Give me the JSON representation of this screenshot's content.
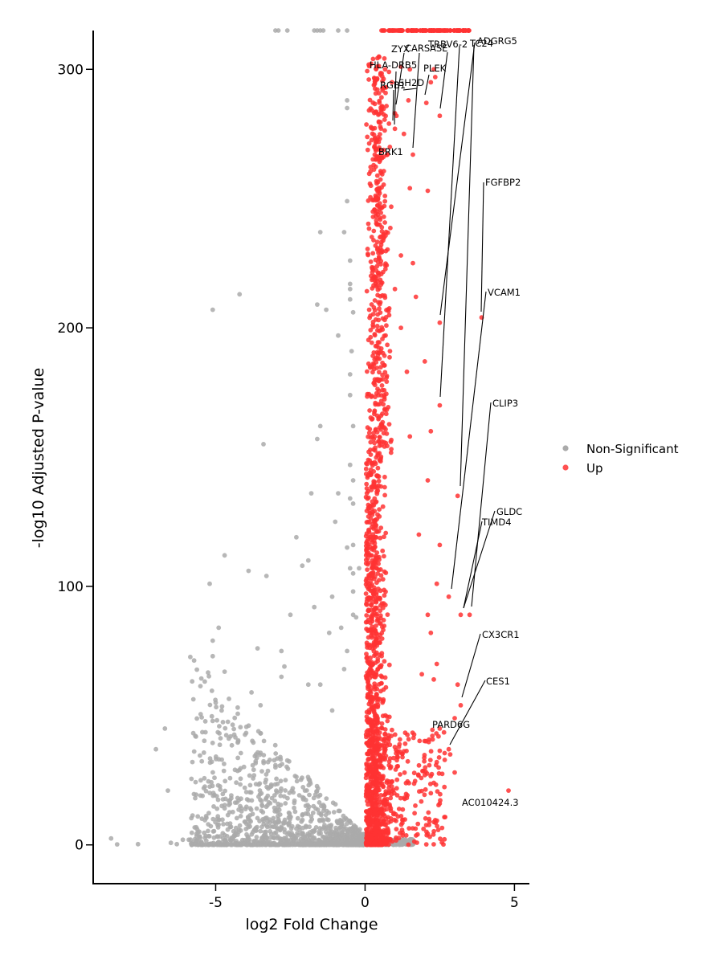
{
  "chart_data": {
    "type": "scatter",
    "xlabel": "log2 Fold Change",
    "ylabel": "-log10 Adjusted P-value",
    "xlim": [
      -9.1,
      5.5
    ],
    "ylim": [
      -15,
      315
    ],
    "x_ticks": [
      {
        "value": -5,
        "label": "-5"
      },
      {
        "value": 0,
        "label": "0"
      },
      {
        "value": 5,
        "label": "5"
      }
    ],
    "y_ticks": [
      {
        "value": 0,
        "label": "0"
      },
      {
        "value": 100,
        "label": "100"
      },
      {
        "value": 200,
        "label": "200"
      },
      {
        "value": 300,
        "label": "300"
      }
    ],
    "grid": false,
    "legend_position": "right",
    "series": [
      {
        "name": "Non-Significant",
        "color": "#aaaaaa",
        "points": [
          [
            -8.5,
            2.5
          ],
          [
            -8.3,
            0.2
          ],
          [
            -7.6,
            0.3
          ],
          [
            -6.7,
            45
          ],
          [
            -7.0,
            37
          ],
          [
            -6.6,
            21
          ],
          [
            -6.5,
            0.8
          ],
          [
            -6.3,
            0.3
          ],
          [
            -6.1,
            2
          ],
          [
            -5.9,
            2
          ],
          [
            -5.6,
            11
          ],
          [
            -5.5,
            25
          ],
          [
            -5.2,
            101
          ],
          [
            -5.1,
            73
          ],
          [
            -5.1,
            79
          ],
          [
            -5.1,
            207
          ],
          [
            -4.9,
            84
          ],
          [
            -5.0,
            55
          ],
          [
            -4.8,
            52
          ],
          [
            -4.7,
            112
          ],
          [
            -4.7,
            67
          ],
          [
            -4.5,
            42
          ],
          [
            -4.2,
            213
          ],
          [
            -3.9,
            106
          ],
          [
            -3.8,
            59
          ],
          [
            -3.6,
            76
          ],
          [
            -3.5,
            54
          ],
          [
            -3.4,
            155
          ],
          [
            -3.3,
            104
          ],
          [
            -3.0,
            30
          ],
          [
            -2.8,
            75
          ],
          [
            -2.8,
            65
          ],
          [
            -2.7,
            69
          ],
          [
            -2.5,
            89
          ],
          [
            -2.3,
            119
          ],
          [
            -2.1,
            108
          ],
          [
            -1.9,
            110
          ],
          [
            -1.9,
            62
          ],
          [
            -1.7,
            92
          ],
          [
            -1.6,
            209
          ],
          [
            -1.5,
            237
          ],
          [
            -1.5,
            162
          ],
          [
            -1.6,
            157
          ],
          [
            -1.8,
            136
          ],
          [
            -1.5,
            62
          ],
          [
            -1.3,
            207
          ],
          [
            -1.2,
            82
          ],
          [
            -1.1,
            96
          ],
          [
            -1.1,
            52
          ],
          [
            -1.0,
            125
          ],
          [
            -0.9,
            197
          ],
          [
            -0.9,
            136
          ],
          [
            -0.7,
            237
          ],
          [
            -0.6,
            288
          ],
          [
            -0.6,
            285
          ],
          [
            -0.6,
            249
          ],
          [
            -0.5,
            217
          ],
          [
            -0.5,
            215
          ],
          [
            -0.5,
            211
          ],
          [
            -0.5,
            226
          ],
          [
            -0.4,
            206
          ],
          [
            -0.45,
            191
          ],
          [
            -0.5,
            182
          ],
          [
            -0.5,
            174
          ],
          [
            -0.4,
            162
          ],
          [
            -0.5,
            147
          ],
          [
            -0.4,
            141
          ],
          [
            -0.5,
            134
          ],
          [
            -0.4,
            132
          ],
          [
            -0.4,
            116
          ],
          [
            -0.5,
            107
          ],
          [
            -0.4,
            105
          ],
          [
            -0.4,
            98
          ],
          [
            -0.4,
            89
          ],
          [
            -0.6,
            115
          ],
          [
            -0.8,
            84
          ],
          [
            -0.6,
            75
          ],
          [
            -0.7,
            68
          ],
          [
            -0.3,
            88
          ],
          [
            -0.2,
            107
          ],
          [
            -3.0,
            315
          ],
          [
            -2.9,
            315
          ],
          [
            -2.6,
            315
          ],
          [
            -1.7,
            315
          ],
          [
            -1.6,
            315
          ],
          [
            -1.5,
            315
          ],
          [
            -1.4,
            315
          ],
          [
            -0.6,
            315
          ],
          [
            -0.9,
            315
          ]
        ]
      },
      {
        "name": "Up",
        "color": "#ff3333",
        "points": [
          [
            4.8,
            21
          ],
          [
            3.9,
            204
          ],
          [
            2.5,
            202
          ],
          [
            2.5,
            170
          ],
          [
            3.1,
            135
          ],
          [
            2.8,
            96
          ],
          [
            3.2,
            89
          ],
          [
            3.5,
            89
          ],
          [
            3.1,
            62
          ],
          [
            3.2,
            54
          ],
          [
            3.0,
            49
          ],
          [
            2.8,
            37
          ],
          [
            2.85,
            35
          ],
          [
            3.0,
            28
          ],
          [
            2.5,
            16
          ],
          [
            2.5,
            282
          ],
          [
            2.05,
            287
          ],
          [
            2.2,
            295
          ],
          [
            2.35,
            297
          ],
          [
            2.3,
            300
          ],
          [
            1.5,
            300
          ],
          [
            1.2,
            301
          ],
          [
            0.8,
            299
          ],
          [
            0.9,
            295
          ],
          [
            0.7,
            293
          ],
          [
            1.0,
            283
          ],
          [
            1.05,
            282
          ],
          [
            1.0,
            277
          ],
          [
            0.8,
            279
          ],
          [
            1.3,
            275
          ],
          [
            1.6,
            267
          ],
          [
            0.75,
            267
          ],
          [
            1.45,
            288
          ],
          [
            2.1,
            253
          ],
          [
            1.5,
            254
          ],
          [
            2.0,
            187
          ],
          [
            2.2,
            160
          ],
          [
            2.1,
            141
          ],
          [
            2.5,
            116
          ],
          [
            2.4,
            101
          ],
          [
            2.1,
            89
          ],
          [
            2.2,
            82
          ],
          [
            2.4,
            70
          ],
          [
            2.3,
            64
          ],
          [
            1.9,
            66
          ],
          [
            2.5,
            45
          ],
          [
            2.4,
            32
          ],
          [
            2.0,
            27
          ],
          [
            2.3,
            24
          ],
          [
            2.2,
            20
          ],
          [
            1.8,
            120
          ],
          [
            1.7,
            212
          ],
          [
            1.6,
            225
          ],
          [
            1.5,
            158
          ],
          [
            1.4,
            183
          ],
          [
            1.2,
            228
          ],
          [
            1.2,
            200
          ],
          [
            1.0,
            215
          ]
        ]
      }
    ],
    "labels": [
      {
        "gene": "ADGRG5",
        "x": 3.7,
        "y": 311
      },
      {
        "gene": "TRBV6-2",
        "x": 3.4,
        "y": 309
      },
      {
        "gene": "TC24",
        "x": 3.8,
        "y": 309
      },
      {
        "gene": "ZYX",
        "x": 1.05,
        "y": 307
      },
      {
        "gene": "CARS",
        "x": 1.45,
        "y": 307
      },
      {
        "gene": "ASE",
        "x": 2.0,
        "y": 307
      },
      {
        "gene": "HLA-DRB5",
        "x": 0.8,
        "y": 300
      },
      {
        "gene": "PLEK",
        "x": 2.2,
        "y": 299
      },
      {
        "gene": "SH2D",
        "x": 1.55,
        "y": 294
      },
      {
        "gene": "RGB1",
        "x": 0.8,
        "y": 293
      },
      {
        "gene": "BRK1",
        "x": 1.2,
        "y": 268
      },
      {
        "gene": "FGFBP2",
        "x": 4.1,
        "y": 256
      },
      {
        "gene": "VCAM1",
        "x": 4.2,
        "y": 213
      },
      {
        "gene": "CLIP3",
        "x": 4.3,
        "y": 170
      },
      {
        "gene": "GLDC",
        "x": 4.4,
        "y": 128
      },
      {
        "gene": "TIMD4",
        "x": 4.0,
        "y": 124
      },
      {
        "gene": "CX3CR1",
        "x": 4.0,
        "y": 81
      },
      {
        "gene": "CES1",
        "x": 4.1,
        "y": 63
      },
      {
        "gene": "PARD6G",
        "x": 2.3,
        "y": 46
      },
      {
        "gene": "AC010424.3",
        "x": 3.25,
        "y": 16
      }
    ]
  }
}
